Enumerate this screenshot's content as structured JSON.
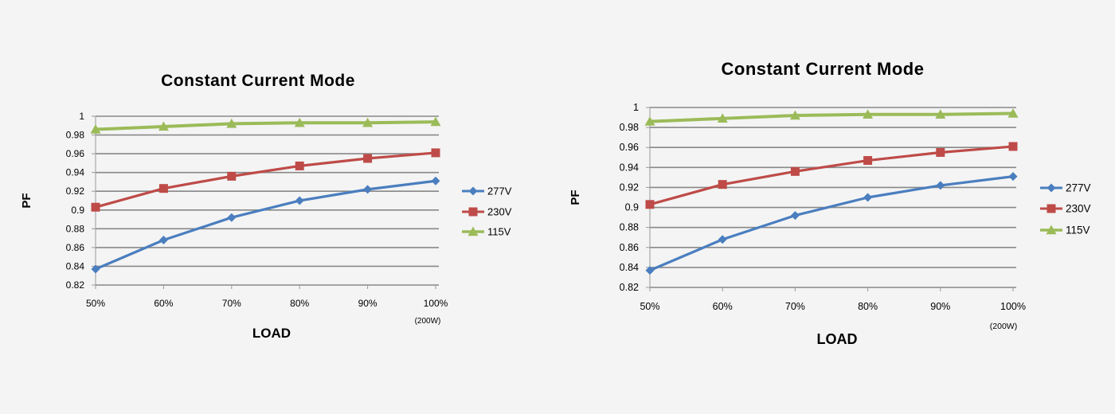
{
  "colors": {
    "background": "#f4f4f4",
    "grid": "#888888",
    "axis": "#999999",
    "277V": "#4a7ebf",
    "230V": "#be4b48",
    "115V": "#9bbb59"
  },
  "chart_data": [
    {
      "type": "line",
      "title": "Constant Current Mode",
      "xlabel": "LOAD",
      "ylabel": "PF",
      "x_note": "(200W)",
      "categories": [
        "50%",
        "60%",
        "70%",
        "80%",
        "90%",
        "100%"
      ],
      "ylim": [
        0.82,
        1.0
      ],
      "yticks": [
        "0.82",
        "0.84",
        "0.86",
        "0.88",
        "0.9",
        "0.92",
        "0.94",
        "0.96",
        "0.98",
        "1"
      ],
      "grid": "horizontal",
      "legend": "right",
      "series": [
        {
          "name": "277V",
          "marker": "diamond",
          "values": [
            0.837,
            0.868,
            0.892,
            0.91,
            0.922,
            0.931
          ]
        },
        {
          "name": "230V",
          "marker": "square",
          "values": [
            0.903,
            0.923,
            0.936,
            0.947,
            0.955,
            0.961
          ]
        },
        {
          "name": "115V",
          "marker": "triangle",
          "values": [
            0.986,
            0.989,
            0.992,
            0.993,
            0.993,
            0.994
          ]
        }
      ]
    },
    {
      "type": "line",
      "title": "Constant Current Mode",
      "xlabel": "LOAD",
      "ylabel": "PF",
      "x_note": "(200W)",
      "categories": [
        "50%",
        "60%",
        "70%",
        "80%",
        "90%",
        "100%"
      ],
      "ylim": [
        0.82,
        1.0
      ],
      "yticks": [
        "0.82",
        "0.84",
        "0.86",
        "0.88",
        "0.9",
        "0.92",
        "0.94",
        "0.96",
        "0.98",
        "1"
      ],
      "grid": "horizontal",
      "legend": "right",
      "series": [
        {
          "name": "277V",
          "marker": "diamond",
          "values": [
            0.837,
            0.868,
            0.892,
            0.91,
            0.922,
            0.931
          ]
        },
        {
          "name": "230V",
          "marker": "square",
          "values": [
            0.903,
            0.923,
            0.936,
            0.947,
            0.955,
            0.961
          ]
        },
        {
          "name": "115V",
          "marker": "triangle",
          "values": [
            0.986,
            0.989,
            0.992,
            0.993,
            0.993,
            0.994
          ]
        }
      ]
    }
  ]
}
